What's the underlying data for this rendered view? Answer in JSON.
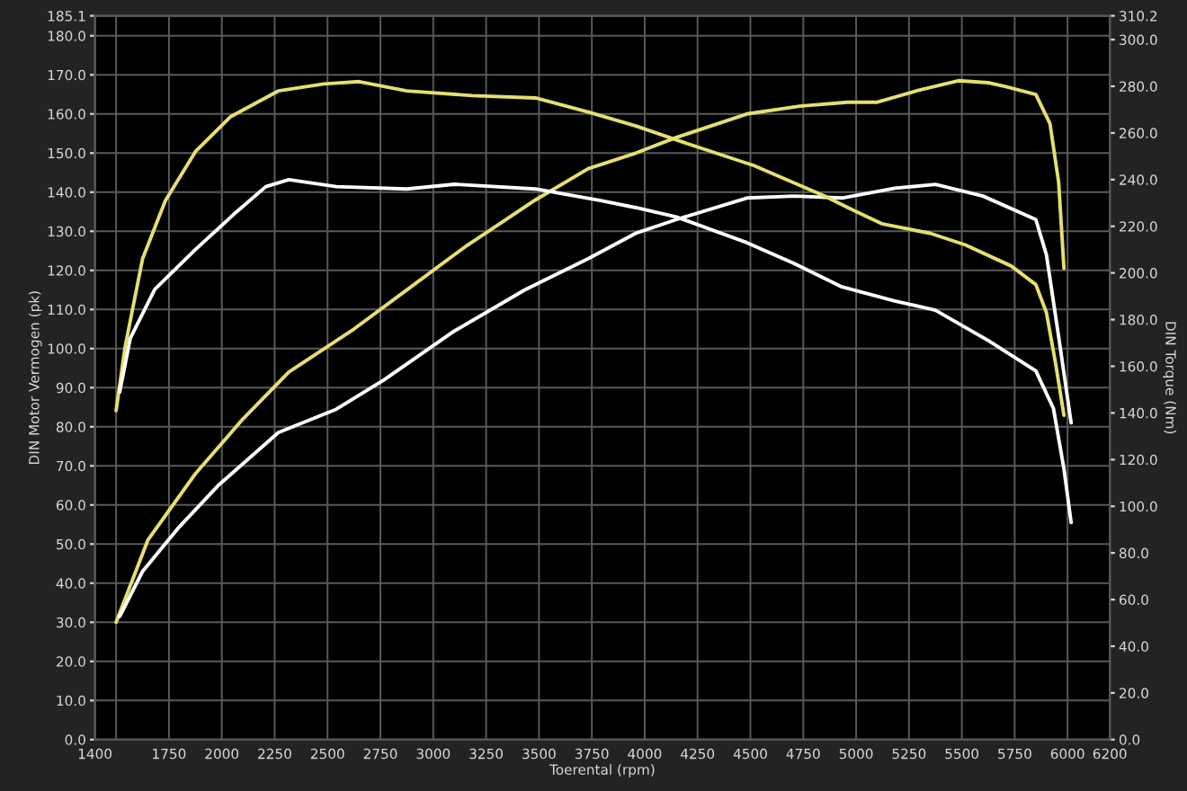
{
  "chart_data": {
    "type": "line",
    "xlabel": "Toerental (rpm)",
    "ylabel": "DIN Motor Vermogen (pk)",
    "y2label": "DIN Torque (Nm)",
    "xlim": [
      1400,
      6200
    ],
    "xticks": [
      1400,
      {
        "value": 1500,
        "label": null
      },
      1750,
      2000,
      2250,
      2500,
      2750,
      3000,
      3250,
      3500,
      3750,
      4000,
      4250,
      4500,
      4750,
      5000,
      5250,
      5500,
      5750,
      6000,
      6200
    ],
    "ylim": [
      0,
      185.1
    ],
    "yticks": [
      {
        "value": 0,
        "label": "0.0"
      },
      {
        "value": 10,
        "label": "10.0"
      },
      {
        "value": 20,
        "label": "20.0"
      },
      {
        "value": 30,
        "label": "30.0"
      },
      {
        "value": 40,
        "label": "40.0"
      },
      {
        "value": 50,
        "label": "50.0"
      },
      {
        "value": 60,
        "label": "60.0"
      },
      {
        "value": 70,
        "label": "70.0"
      },
      {
        "value": 80,
        "label": "80.0"
      },
      {
        "value": 90,
        "label": "90.0"
      },
      {
        "value": 100,
        "label": "100.0"
      },
      {
        "value": 110,
        "label": "110.0"
      },
      {
        "value": 120,
        "label": "120.0"
      },
      {
        "value": 130,
        "label": "130.0"
      },
      {
        "value": 140,
        "label": "140.0"
      },
      {
        "value": 150,
        "label": "150.0"
      },
      {
        "value": 160,
        "label": "160.0"
      },
      {
        "value": 170,
        "label": "170.0"
      },
      {
        "value": 180,
        "label": "180.0"
      },
      185.1
    ],
    "y2lim": [
      0,
      310.2
    ],
    "y2ticks": [
      {
        "value": 0,
        "label": "0.0"
      },
      {
        "value": 20,
        "label": "20.0"
      },
      {
        "value": 40,
        "label": "40.0"
      },
      {
        "value": 60,
        "label": "60.0"
      },
      {
        "value": 80,
        "label": "80.0"
      },
      {
        "value": 100,
        "label": "100.0"
      },
      {
        "value": 120,
        "label": "120.0"
      },
      {
        "value": 140,
        "label": "140.0"
      },
      {
        "value": 160,
        "label": "160.0"
      },
      {
        "value": 180,
        "label": "180.0"
      },
      {
        "value": 200,
        "label": "200.0"
      },
      {
        "value": 220,
        "label": "220.0"
      },
      {
        "value": 240,
        "label": "240.0"
      },
      {
        "value": 260,
        "label": "260.0"
      },
      {
        "value": 280,
        "label": "280.0"
      },
      {
        "value": 300,
        "label": "300.0"
      },
      310.2
    ],
    "grid": true,
    "marker": "none",
    "line_style": "solid",
    "series": [
      {
        "color": "#e6df6e",
        "axis": "y2",
        "x": [
          1500,
          1542,
          1625,
          1733,
          1875,
          2042,
          2267,
          2483,
          2650,
          2875,
          3183,
          3483,
          3733,
          3958,
          4150,
          4517,
          4850,
          4983,
          5125,
          5350,
          5517,
          5733,
          5850,
          5900,
          5942,
          5983
        ],
        "values": [
          141,
          168,
          206,
          231,
          252,
          267,
          278,
          281,
          282,
          278,
          276,
          275,
          269,
          263,
          257,
          246,
          233,
          227,
          221,
          217,
          212,
          203,
          195,
          183,
          162,
          139
        ]
      },
      {
        "color": "#ffffff",
        "axis": "y2",
        "x": [
          1517,
          1567,
          1683,
          1875,
          2067,
          2208,
          2317,
          2542,
          2875,
          3100,
          3483,
          3792,
          3958,
          4150,
          4483,
          4708,
          4933,
          5183,
          5375,
          5625,
          5850,
          5933,
          5983,
          6017
        ],
        "values": [
          149,
          172,
          193,
          210,
          226,
          237,
          240,
          237,
          236,
          238,
          236,
          231,
          228,
          224,
          213,
          204,
          194,
          188,
          184,
          171,
          158,
          142,
          116,
          93
        ]
      },
      {
        "color": "#e6df6e",
        "x": [
          1500,
          1650,
          1875,
          2100,
          2317,
          2625,
          2850,
          3150,
          3483,
          3733,
          3958,
          4150,
          4483,
          4733,
          4958,
          5100,
          5292,
          5483,
          5625,
          5708,
          5850,
          5917,
          5958,
          5983
        ],
        "values": [
          30,
          51,
          68,
          82,
          94,
          105,
          114,
          126,
          138,
          146,
          150,
          154,
          160,
          162,
          163,
          163,
          166,
          168.5,
          168,
          167,
          165,
          157.5,
          142.5,
          120.5
        ]
      },
      {
        "color": "#ffffff",
        "x": [
          1517,
          1625,
          1792,
          1983,
          2267,
          2542,
          2767,
          3100,
          3433,
          3733,
          3958,
          4150,
          4483,
          4708,
          4933,
          5183,
          5375,
          5600,
          5850,
          5900,
          5958,
          6017
        ],
        "values": [
          31.5,
          43,
          54,
          65,
          78.5,
          84.5,
          92,
          104.5,
          115,
          123,
          129.5,
          133,
          138.5,
          139,
          138.5,
          141,
          142,
          139,
          133,
          124,
          103,
          81
        ]
      }
    ]
  }
}
